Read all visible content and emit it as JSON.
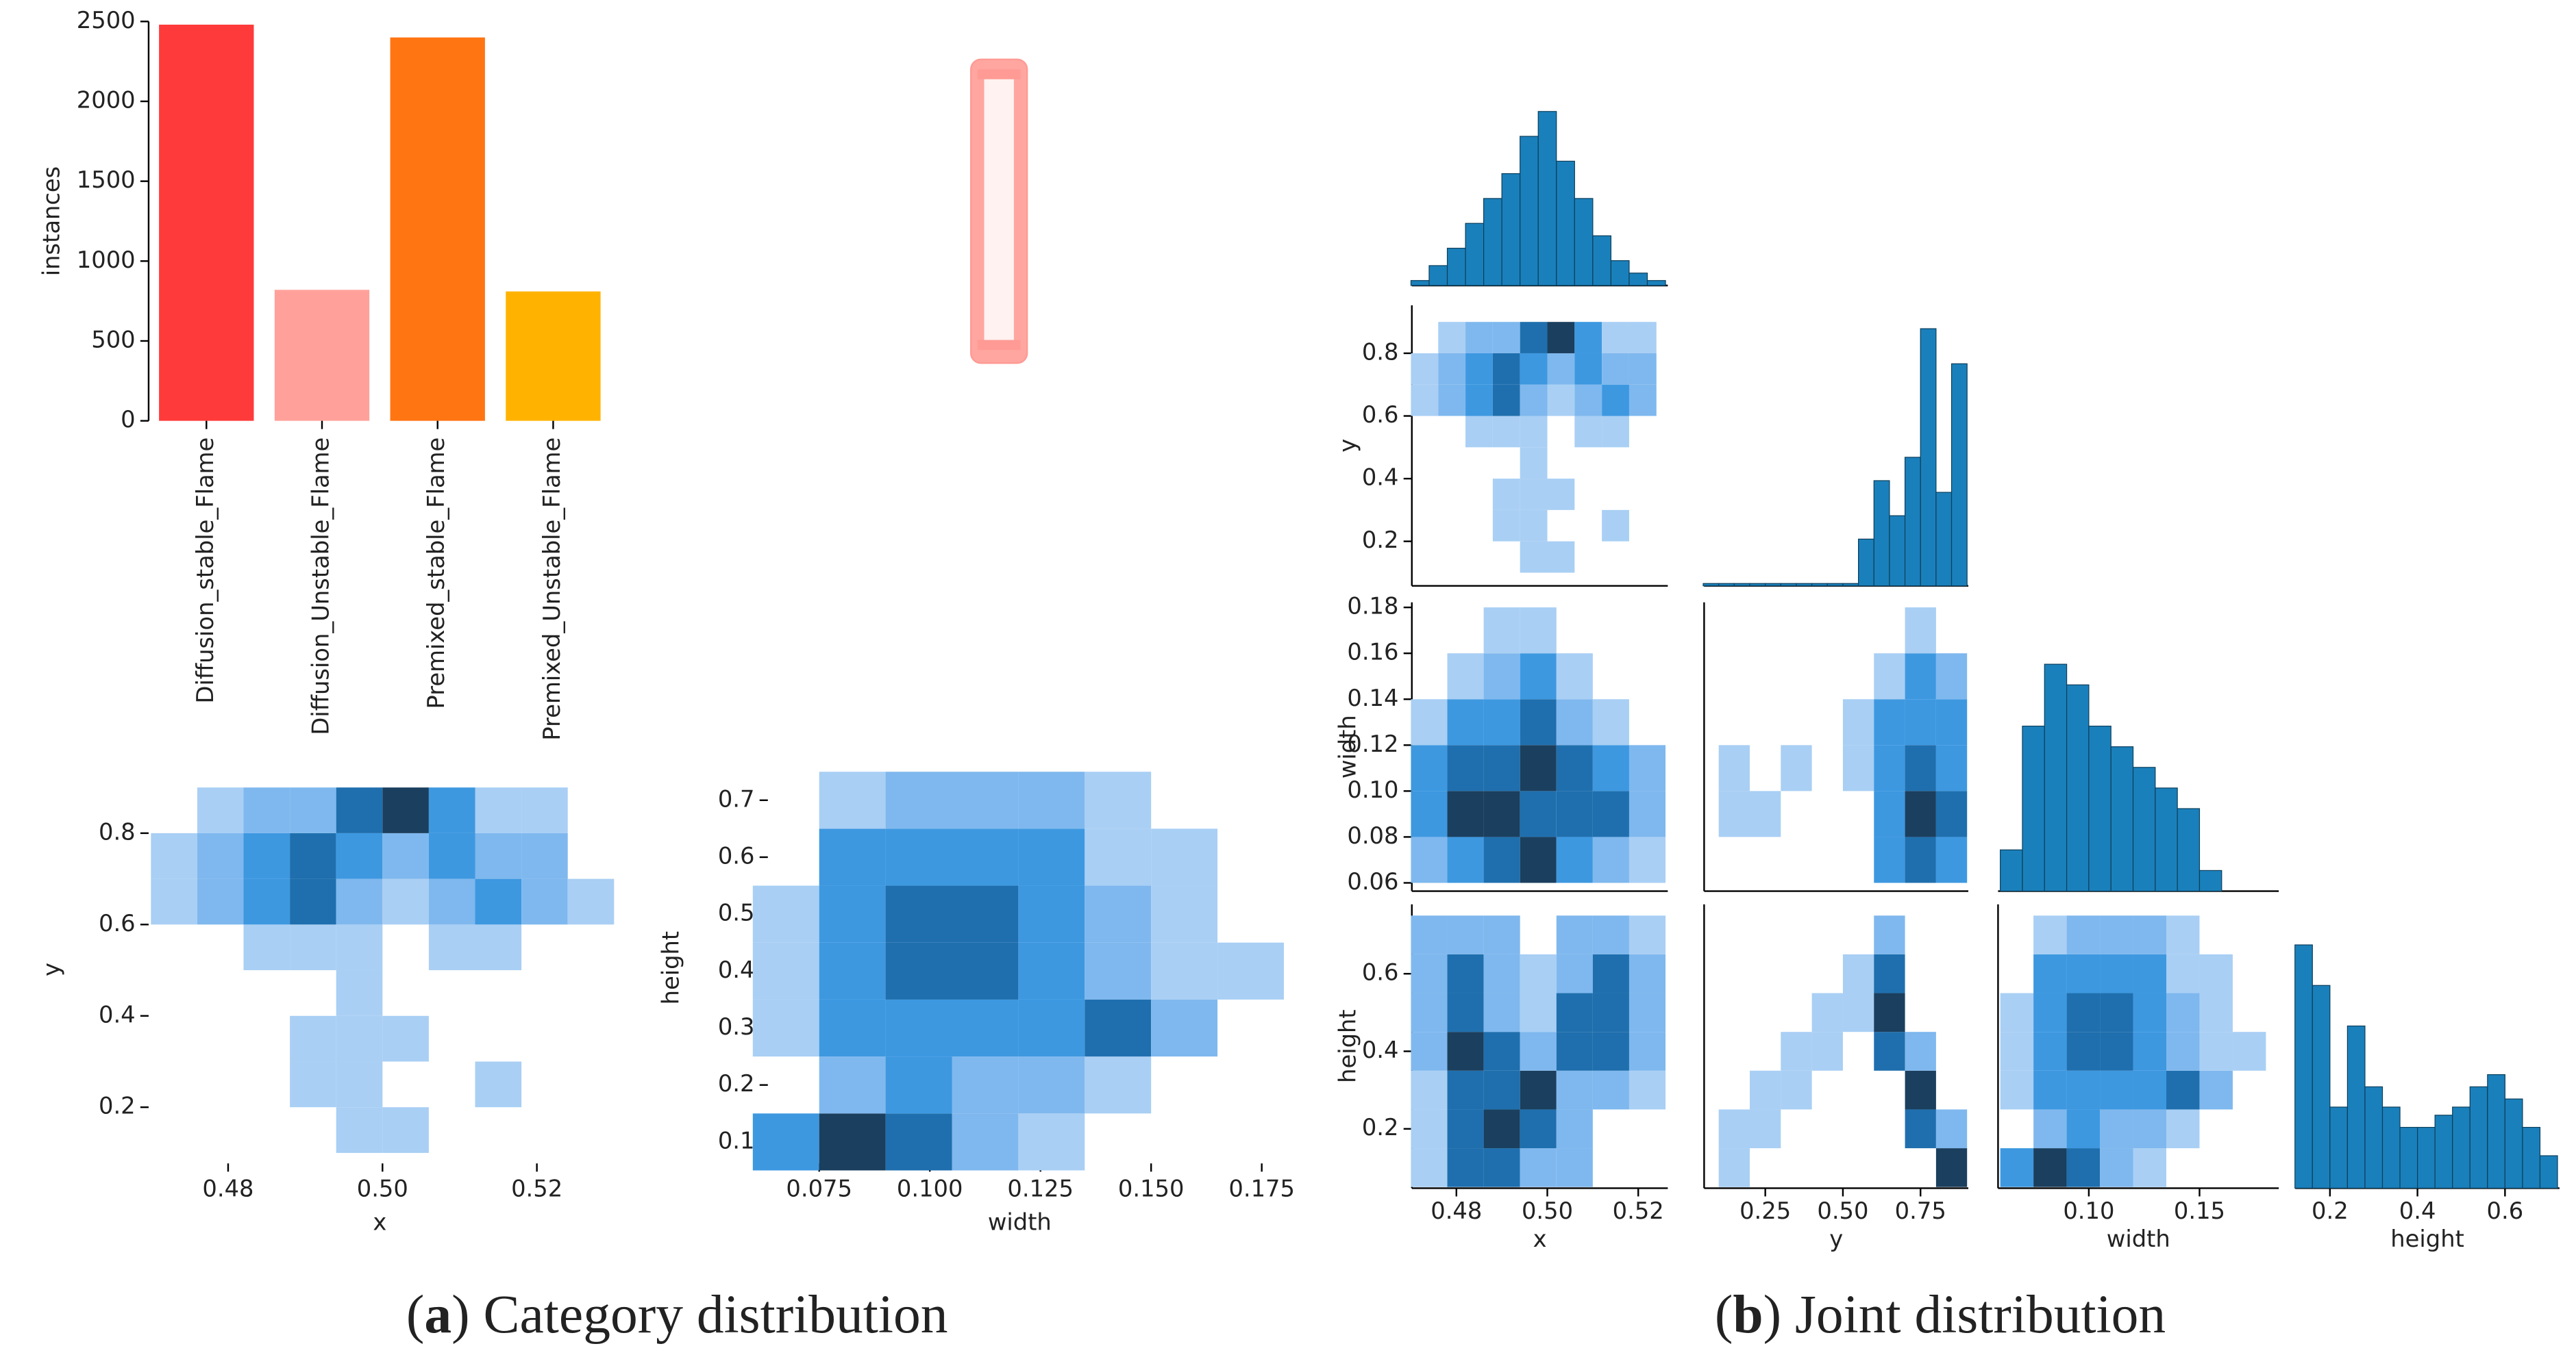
{
  "chart_data": [
    {
      "type": "bar",
      "ylabel": "instances",
      "categories": [
        "Diffusion_stable_Flame",
        "Diffusion_Unstable_Flame",
        "Premixed_stable_Flame",
        "Premixed_Unstable_Flame"
      ],
      "values": [
        2480,
        820,
        2400,
        810
      ],
      "colors": [
        "#ff3a3a",
        "#ffa19a",
        "#ff7512",
        "#ffb300"
      ],
      "ylim": [
        0,
        2500
      ],
      "yticks": [
        0,
        500,
        1000,
        1500,
        2000,
        2500
      ]
    },
    {
      "type": "heatmap",
      "xlabel": "x",
      "ylabel": "y",
      "xlim": [
        0.4697,
        0.5296
      ],
      "ylim": [
        0.077,
        0.926
      ],
      "xticks": [
        0.48,
        {
          "value": 0.5,
          "label": "0.50"
        },
        0.52
      ],
      "yticks": [
        0.2,
        0.4,
        0.6,
        0.8
      ],
      "x_bins": [
        0.47,
        0.476,
        0.482,
        0.488,
        0.494,
        0.5,
        0.506,
        0.512,
        0.518,
        0.524,
        0.53
      ],
      "y_bins": [
        0.1,
        0.2,
        0.3,
        0.4,
        0.5,
        0.6,
        0.7,
        0.8,
        0.9
      ],
      "counts": [
        [
          0,
          0,
          0,
          0,
          1,
          1,
          0,
          0,
          0,
          0
        ],
        [
          0,
          0,
          0,
          1,
          1,
          0,
          0,
          1,
          0,
          0
        ],
        [
          0,
          0,
          0,
          1,
          1,
          1,
          0,
          0,
          0,
          0
        ],
        [
          0,
          0,
          0,
          0,
          1,
          0,
          0,
          0,
          0,
          0
        ],
        [
          0,
          0,
          1,
          1,
          1,
          0,
          1,
          1,
          0,
          0
        ],
        [
          1,
          3,
          4,
          6,
          2,
          1,
          3,
          4,
          2,
          1
        ],
        [
          1,
          3,
          5,
          7,
          4,
          2,
          4,
          3,
          2,
          0
        ],
        [
          0,
          1,
          2,
          3,
          6,
          8,
          5,
          1,
          1,
          0
        ]
      ],
      "colors": [
        "#a9cff4",
        "#7fb8ee",
        "#3d98e0",
        "#1f6fae",
        "#1b3f5e"
      ]
    },
    {
      "type": "heatmap",
      "xlabel": "width",
      "ylabel": "height",
      "xlim": [
        0.0634,
        0.1772
      ],
      "ylim": [
        0.0623,
        0.749
      ],
      "xticks": [
        0.075,
        {
          "value": 0.1,
          "label": "0.100"
        },
        0.125,
        {
          "value": 0.15,
          "label": "0.150"
        },
        0.175
      ],
      "yticks": [
        0.1,
        0.2,
        0.3,
        0.4,
        0.5,
        0.6,
        0.7
      ],
      "x_bins": [
        0.06,
        0.075,
        0.09,
        0.105,
        0.12,
        0.135,
        0.15,
        0.165,
        0.18
      ],
      "y_bins": [
        0.05,
        0.15,
        0.25,
        0.35,
        0.45,
        0.55,
        0.65,
        0.75
      ],
      "counts": [
        [
          3,
          6,
          5,
          2,
          1,
          0,
          0,
          0
        ],
        [
          0,
          2,
          3,
          2,
          2,
          1,
          0,
          0
        ],
        [
          1,
          3,
          4,
          4,
          3,
          5,
          2,
          0
        ],
        [
          1,
          4,
          5,
          5,
          4,
          2,
          1,
          1
        ],
        [
          1,
          3,
          5,
          5,
          4,
          2,
          1,
          0
        ],
        [
          0,
          3,
          4,
          4,
          3,
          1,
          1,
          0
        ],
        [
          0,
          1,
          2,
          2,
          2,
          1,
          0,
          0
        ]
      ],
      "colors": [
        "#a9cff4",
        "#7fb8ee",
        "#3d98e0",
        "#1f6fae",
        "#1b3f5e"
      ]
    },
    {
      "type": "hist",
      "xlim": [
        0.4702,
        0.5265
      ],
      "ylim": [
        0,
        75
      ],
      "color": "#1a80bb",
      "bins": [
        0.47,
        0.474,
        0.478,
        0.482,
        0.486,
        0.49,
        0.494,
        0.498,
        0.502,
        0.506,
        0.51,
        0.514,
        0.518,
        0.522,
        0.526
      ],
      "counts": [
        2,
        8,
        15,
        25,
        35,
        45,
        60,
        70,
        50,
        35,
        20,
        10,
        5,
        2
      ]
    },
    {
      "type": "heatmap",
      "ylabel": "y",
      "xlim": [
        0.4702,
        0.5265
      ],
      "ylim": [
        0.058,
        0.953
      ],
      "yticks": [
        0.2,
        0.4,
        0.6,
        0.8
      ],
      "x_bins": [
        0.47,
        0.476,
        0.482,
        0.488,
        0.494,
        0.5,
        0.506,
        0.512,
        0.518,
        0.524
      ],
      "y_bins": [
        0.1,
        0.2,
        0.3,
        0.4,
        0.5,
        0.6,
        0.7,
        0.8,
        0.9
      ],
      "counts": [
        [
          0,
          0,
          0,
          0,
          1,
          1,
          0,
          0,
          0
        ],
        [
          0,
          0,
          0,
          1,
          1,
          0,
          0,
          1,
          0
        ],
        [
          0,
          0,
          0,
          1,
          1,
          1,
          0,
          0,
          0
        ],
        [
          0,
          0,
          0,
          0,
          1,
          0,
          0,
          0,
          0
        ],
        [
          0,
          0,
          1,
          1,
          1,
          0,
          1,
          1,
          0
        ],
        [
          1,
          3,
          4,
          6,
          2,
          1,
          3,
          4,
          2
        ],
        [
          1,
          3,
          5,
          7,
          4,
          2,
          4,
          3,
          2
        ],
        [
          0,
          1,
          2,
          3,
          6,
          8,
          5,
          1,
          1
        ]
      ],
      "colors": [
        "#a9cff4",
        "#7fb8ee",
        "#3d98e0",
        "#1f6fae",
        "#1b3f5e"
      ]
    },
    {
      "type": "hist",
      "xlim": [
        0.053,
        0.904
      ],
      "ylim": [
        0,
        120
      ],
      "color": "#1a80bb",
      "bins": [
        0.05,
        0.1,
        0.15,
        0.2,
        0.25,
        0.3,
        0.35,
        0.4,
        0.45,
        0.5,
        0.55,
        0.6,
        0.65,
        0.7,
        0.75,
        0.8,
        0.85,
        0.9
      ],
      "counts": [
        1,
        1,
        1,
        1,
        1,
        1,
        1,
        1,
        1,
        1,
        20,
        45,
        30,
        55,
        110,
        40,
        95
      ]
    },
    {
      "type": "heatmap",
      "ylabel": "width",
      "xlim": [
        0.4702,
        0.5265
      ],
      "ylim": [
        0.0564,
        0.1822
      ],
      "yticks": [
        0.06,
        0.08,
        {
          "value": 0.1,
          "label": "0.10"
        },
        0.12,
        0.14,
        0.16,
        0.18
      ],
      "x_bins": [
        0.47,
        0.478,
        0.486,
        0.494,
        0.502,
        0.51,
        0.518,
        0.526
      ],
      "y_bins": [
        0.06,
        0.08,
        0.1,
        0.12,
        0.14,
        0.16,
        0.18
      ],
      "counts": [
        [
          2,
          3,
          4,
          5,
          3,
          2,
          1
        ],
        [
          3,
          5,
          5,
          4,
          4,
          4,
          2
        ],
        [
          3,
          4,
          4,
          5,
          4,
          3,
          2
        ],
        [
          1,
          3,
          3,
          4,
          2,
          1,
          0
        ],
        [
          0,
          1,
          2,
          3,
          1,
          0,
          0
        ],
        [
          0,
          0,
          1,
          1,
          0,
          0,
          0
        ]
      ],
      "colors": [
        "#a9cff4",
        "#7fb8ee",
        "#3d98e0",
        "#1f6fae",
        "#1b3f5e"
      ]
    },
    {
      "type": "heatmap",
      "xlim": [
        0.053,
        0.904
      ],
      "ylim": [
        0.0564,
        0.1822
      ],
      "x_bins": [
        0.1,
        0.2,
        0.3,
        0.4,
        0.5,
        0.6,
        0.7,
        0.8,
        0.9
      ],
      "y_bins": [
        0.06,
        0.08,
        0.1,
        0.12,
        0.14,
        0.16,
        0.18
      ],
      "counts": [
        [
          0,
          0,
          0,
          0,
          0,
          3,
          5,
          4
        ],
        [
          1,
          1,
          0,
          0,
          0,
          4,
          6,
          5
        ],
        [
          1,
          0,
          1,
          0,
          1,
          4,
          5,
          4
        ],
        [
          0,
          0,
          0,
          0,
          1,
          3,
          4,
          3
        ],
        [
          0,
          0,
          0,
          0,
          0,
          1,
          3,
          2
        ],
        [
          0,
          0,
          0,
          0,
          0,
          0,
          1,
          0
        ]
      ],
      "colors": [
        "#a9cff4",
        "#7fb8ee",
        "#3d98e0",
        "#1f6fae",
        "#1b3f5e"
      ]
    },
    {
      "type": "hist",
      "xlim": [
        0.059,
        0.1858
      ],
      "ylim": [
        0,
        70
      ],
      "color": "#1a80bb",
      "bins": [
        0.06,
        0.07,
        0.08,
        0.09,
        0.1,
        0.11,
        0.12,
        0.13,
        0.14,
        0.15,
        0.16
      ],
      "counts": [
        10,
        40,
        55,
        50,
        40,
        35,
        30,
        25,
        20,
        5
      ]
    },
    {
      "type": "heatmap",
      "xlabel": "x",
      "ylabel": "height",
      "xlim": [
        0.4702,
        0.5265
      ],
      "ylim": [
        0.047,
        0.779
      ],
      "xticks": [
        0.48,
        {
          "value": 0.5,
          "label": "0.50"
        },
        0.52
      ],
      "yticks": [
        0.2,
        0.4,
        0.6
      ],
      "x_bins": [
        0.47,
        0.478,
        0.486,
        0.494,
        0.502,
        0.51,
        0.518,
        0.526
      ],
      "y_bins": [
        0.05,
        0.15,
        0.25,
        0.35,
        0.45,
        0.55,
        0.65,
        0.75
      ],
      "counts": [
        [
          1,
          3,
          3,
          2,
          2,
          0,
          0
        ],
        [
          1,
          3,
          4,
          3,
          2,
          0,
          0
        ],
        [
          1,
          3,
          3,
          4,
          2,
          2,
          1
        ],
        [
          2,
          4,
          3,
          2,
          3,
          3,
          2
        ],
        [
          2,
          3,
          2,
          1,
          3,
          3,
          2
        ],
        [
          2,
          3,
          2,
          1,
          2,
          3,
          2
        ],
        [
          2,
          2,
          2,
          0,
          2,
          2,
          1
        ]
      ],
      "colors": [
        "#a9cff4",
        "#7fb8ee",
        "#3d98e0",
        "#1f6fae",
        "#1b3f5e"
      ]
    },
    {
      "type": "heatmap",
      "xlabel": "y",
      "xlim": [
        0.053,
        0.904
      ],
      "ylim": [
        0.047,
        0.779
      ],
      "xticks": [
        0.25,
        {
          "value": 0.5,
          "label": "0.50"
        },
        0.75
      ],
      "x_bins": [
        0.1,
        0.2,
        0.3,
        0.4,
        0.5,
        0.6,
        0.7,
        0.8,
        0.9
      ],
      "y_bins": [
        0.05,
        0.15,
        0.25,
        0.35,
        0.45,
        0.55,
        0.65,
        0.75
      ],
      "counts": [
        [
          1,
          0,
          0,
          0,
          0,
          0,
          0,
          4
        ],
        [
          1,
          1,
          0,
          0,
          0,
          0,
          3,
          2
        ],
        [
          0,
          1,
          1,
          0,
          0,
          0,
          4,
          0
        ],
        [
          0,
          0,
          1,
          1,
          0,
          3,
          2,
          0
        ],
        [
          0,
          0,
          0,
          1,
          1,
          4,
          0,
          0
        ],
        [
          0,
          0,
          0,
          0,
          1,
          3,
          0,
          0
        ],
        [
          0,
          0,
          0,
          0,
          0,
          2,
          0,
          0
        ]
      ],
      "colors": [
        "#a9cff4",
        "#7fb8ee",
        "#3d98e0",
        "#1f6fae",
        "#1b3f5e"
      ]
    },
    {
      "type": "heatmap",
      "xlabel": "width",
      "xlim": [
        0.059,
        0.1858
      ],
      "ylim": [
        0.047,
        0.779
      ],
      "xticks": [
        {
          "value": 0.1,
          "label": "0.10"
        },
        0.15
      ],
      "x_bins": [
        0.06,
        0.075,
        0.09,
        0.105,
        0.12,
        0.135,
        0.15,
        0.165,
        0.18
      ],
      "y_bins": [
        0.05,
        0.15,
        0.25,
        0.35,
        0.45,
        0.55,
        0.65,
        0.75
      ],
      "counts": [
        [
          3,
          6,
          5,
          2,
          1,
          0,
          0,
          0
        ],
        [
          0,
          2,
          3,
          2,
          2,
          1,
          0,
          0
        ],
        [
          1,
          3,
          4,
          4,
          3,
          5,
          2,
          0
        ],
        [
          1,
          4,
          5,
          5,
          4,
          2,
          1,
          1
        ],
        [
          1,
          3,
          5,
          5,
          4,
          2,
          1,
          0
        ],
        [
          0,
          3,
          4,
          4,
          3,
          1,
          1,
          0
        ],
        [
          0,
          1,
          2,
          2,
          2,
          1,
          0,
          0
        ]
      ],
      "colors": [
        "#a9cff4",
        "#7fb8ee",
        "#3d98e0",
        "#1f6fae",
        "#1b3f5e"
      ]
    },
    {
      "type": "hist",
      "xlabel": "height",
      "xlim": [
        0.1208,
        0.7245
      ],
      "ylim": [
        0,
        70
      ],
      "color": "#1a80bb",
      "xticks": [
        0.2,
        0.4,
        0.6
      ],
      "bins": [
        0.12,
        0.16,
        0.2,
        0.24,
        0.28,
        0.32,
        0.36,
        0.4,
        0.44,
        0.48,
        0.52,
        0.56,
        0.6,
        0.64,
        0.68,
        0.72
      ],
      "counts": [
        60,
        50,
        20,
        40,
        25,
        20,
        15,
        15,
        18,
        20,
        25,
        28,
        22,
        15,
        8
      ]
    }
  ],
  "captions": [
    [
      "(",
      "a",
      ") Category distribution"
    ],
    [
      "(",
      "b",
      ") Joint distribution"
    ]
  ]
}
